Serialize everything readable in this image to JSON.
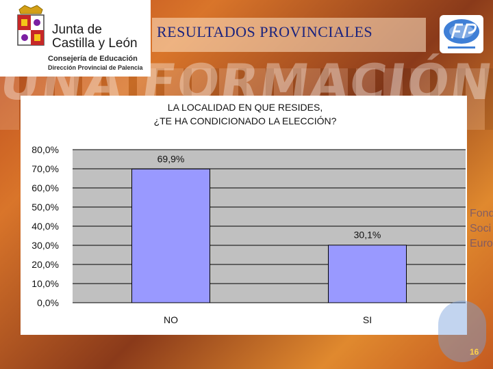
{
  "header": {
    "org_line1": "Junta de",
    "org_line2": "Castilla y León",
    "dept_line1": "Consejería de Educación",
    "dept_line2": "Dirección Provincial de Palencia"
  },
  "slide_title": "RESULTADOS PROVINCIALES",
  "background_text": "UNA FORMACIÓN PROFESIONAL",
  "side_text": [
    "Fond",
    "Soci",
    "Euro"
  ],
  "page_number": "16",
  "colors": {
    "bar": "#9999ff",
    "plot_bg": "#c0c0c0",
    "title": "#1a237e"
  },
  "chart_data": {
    "type": "bar",
    "title_lines": [
      "LA LOCALIDAD EN QUE RESIDES,",
      "¿TE HA CONDICIONADO LA ELECCIÓN?"
    ],
    "categories": [
      "NO",
      "SI"
    ],
    "values": [
      69.9,
      30.1
    ],
    "data_labels": [
      "69,9%",
      "30,1%"
    ],
    "ylim": [
      0,
      80
    ],
    "yticks": [
      "0,0%",
      "10,0%",
      "20,0%",
      "30,0%",
      "40,0%",
      "50,0%",
      "60,0%",
      "70,0%",
      "80,0%"
    ],
    "xlabel": "",
    "ylabel": "",
    "grid": true,
    "legend": "none"
  }
}
